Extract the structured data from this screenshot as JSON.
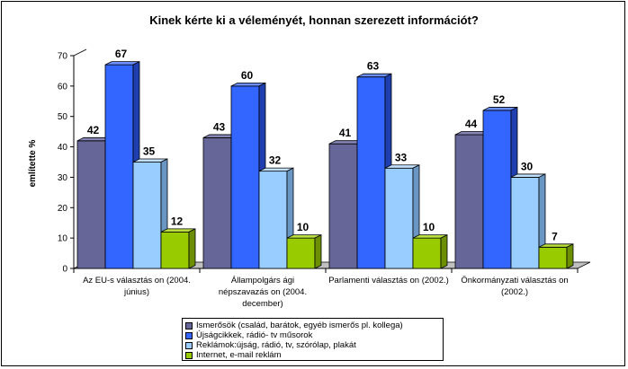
{
  "chart_data": {
    "type": "bar",
    "title": "Kinek kérte ki a véleményét, honnan szerezett információt?",
    "ylabel": "említette %",
    "ylim": [
      0,
      70
    ],
    "yticks": [
      0,
      10,
      20,
      30,
      40,
      50,
      60,
      70
    ],
    "grid": false,
    "legend_position": "bottom",
    "categories": [
      "Az EU-s választáson (2004. június)",
      "Állampolgárságí népszavazáson (2004. december)",
      "Parlamenti választáson (2002.)",
      "Önkormányzati választáson (2002.)"
    ],
    "category_label_lines": [
      [
        "Az EU-s választás on (2004.",
        "június)"
      ],
      [
        "Állampolgárs ági",
        "népszavazás on (2004.",
        "december)"
      ],
      [
        "Parlamenti választás on (2002.)"
      ],
      [
        "Önkormányzati választás on",
        "(2002.)"
      ]
    ],
    "series": [
      {
        "name": "Ismerősök (család, barátok, egyéb ismerős pl. kollega)",
        "values": [
          42,
          43,
          41,
          44
        ],
        "color": "#666699",
        "color_top": "#8585b8",
        "color_side": "#44446b"
      },
      {
        "name": "Újságcikkek, rádió- tv műsorok",
        "values": [
          67,
          60,
          63,
          52
        ],
        "color": "#3366ff",
        "color_top": "#6b8fff",
        "color_side": "#1f3fb0"
      },
      {
        "name": "Reklámok:újság, rádió, tv, szórólap, plakát",
        "values": [
          35,
          32,
          33,
          30
        ],
        "color": "#99ccff",
        "color_top": "#c2e0ff",
        "color_side": "#6a96c4"
      },
      {
        "name": "Internet, e-mail reklám",
        "values": [
          12,
          10,
          10,
          7
        ],
        "color": "#99cc00",
        "color_top": "#bbe03d",
        "color_side": "#6b8f00"
      }
    ]
  }
}
